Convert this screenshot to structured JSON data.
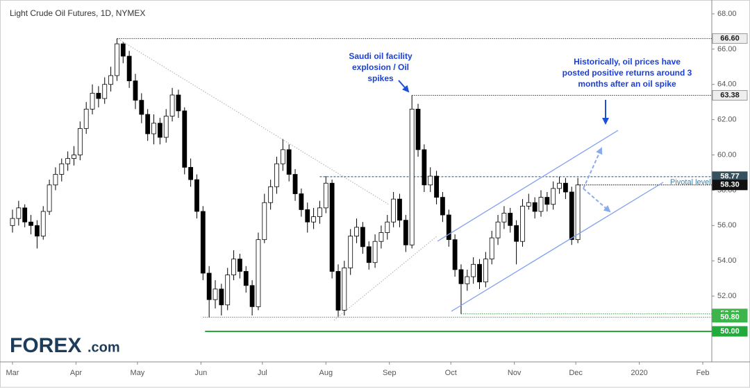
{
  "chart_data": {
    "type": "candlestick",
    "title": "Light Crude Oil Futures, 1D, NYMEX",
    "xlim": [
      -3.39,
      341.4
    ],
    "xticks": [
      {
        "value": 0,
        "label": "Mar"
      },
      {
        "value": 31,
        "label": "Apr"
      },
      {
        "value": 61,
        "label": "May"
      },
      {
        "value": 92,
        "label": "Jun"
      },
      {
        "value": 122,
        "label": "Jul"
      },
      {
        "value": 153,
        "label": "Aug"
      },
      {
        "value": 184,
        "label": "Sep"
      },
      {
        "value": 214,
        "label": "Oct"
      },
      {
        "value": 245,
        "label": "Nov"
      },
      {
        "value": 275,
        "label": "Dec"
      },
      {
        "value": 306,
        "label": "2020"
      },
      {
        "value": 337,
        "label": "Feb"
      }
    ],
    "ylim": [
      48.27,
      68.47
    ],
    "yticks": [
      {
        "value": 52,
        "label": "52.00"
      },
      {
        "value": 54,
        "label": "54.00"
      },
      {
        "value": 56,
        "label": "56.00"
      },
      {
        "value": 58,
        "label": "58.00"
      },
      {
        "value": 60,
        "label": "60.00"
      },
      {
        "value": 62,
        "label": "62.00"
      },
      {
        "value": 64,
        "label": "64.00"
      },
      {
        "value": 66,
        "label": "66.00"
      },
      {
        "value": 68,
        "label": "68.00"
      }
    ],
    "up_color": "#ffffff",
    "down_color": "#000000",
    "x": [
      0,
      3,
      6,
      9,
      12,
      15,
      18,
      21,
      24,
      27,
      30,
      33,
      36,
      39,
      42,
      45,
      48,
      51,
      54,
      57,
      60,
      63,
      66,
      69,
      72,
      75,
      78,
      81,
      84,
      87,
      90,
      93,
      96,
      99,
      102,
      105,
      108,
      111,
      114,
      117,
      120,
      123,
      126,
      129,
      132,
      135,
      138,
      141,
      144,
      147,
      150,
      153,
      156,
      159,
      162,
      165,
      168,
      171,
      174,
      177,
      180,
      183,
      186,
      189,
      192,
      195,
      198,
      201,
      204,
      207,
      210,
      213,
      216,
      219,
      222,
      225,
      228,
      231,
      234,
      237,
      240,
      243,
      246,
      249,
      252,
      255,
      258,
      261,
      264,
      267,
      270,
      273,
      276
    ],
    "ohlc": [
      [
        56.0,
        56.9,
        55.6,
        56.4
      ],
      [
        56.4,
        57.4,
        56.0,
        57.0
      ],
      [
        57.0,
        57.2,
        55.9,
        56.2
      ],
      [
        56.2,
        56.6,
        55.5,
        56.0
      ],
      [
        56.0,
        56.3,
        54.7,
        55.4
      ],
      [
        55.4,
        57.1,
        55.2,
        56.8
      ],
      [
        56.8,
        58.6,
        56.6,
        58.3
      ],
      [
        58.3,
        59.3,
        58.0,
        58.9
      ],
      [
        58.9,
        59.8,
        58.5,
        59.5
      ],
      [
        59.5,
        60.2,
        59.1,
        59.8
      ],
      [
        59.8,
        60.5,
        59.4,
        60.0
      ],
      [
        60.0,
        61.9,
        59.7,
        61.5
      ],
      [
        61.5,
        63.0,
        61.2,
        62.6
      ],
      [
        62.6,
        64.0,
        62.3,
        63.5
      ],
      [
        63.5,
        63.9,
        62.7,
        63.2
      ],
      [
        63.2,
        64.4,
        62.9,
        64.0
      ],
      [
        64.0,
        65.0,
        63.6,
        64.5
      ],
      [
        64.5,
        66.6,
        64.2,
        66.3
      ],
      [
        66.3,
        66.4,
        65.2,
        65.6
      ],
      [
        65.6,
        65.9,
        63.8,
        64.2
      ],
      [
        64.2,
        64.6,
        62.6,
        63.1
      ],
      [
        63.1,
        63.5,
        61.8,
        62.3
      ],
      [
        62.3,
        62.6,
        60.8,
        61.2
      ],
      [
        61.2,
        62.3,
        60.6,
        61.8
      ],
      [
        61.8,
        62.1,
        60.6,
        61.0
      ],
      [
        61.0,
        62.6,
        60.7,
        62.2
      ],
      [
        62.2,
        63.8,
        61.9,
        63.4
      ],
      [
        63.4,
        63.7,
        62.1,
        62.5
      ],
      [
        62.5,
        62.7,
        58.9,
        59.3
      ],
      [
        59.3,
        59.8,
        58.2,
        58.6
      ],
      [
        58.6,
        58.9,
        56.4,
        56.8
      ],
      [
        56.8,
        57.1,
        52.9,
        53.3
      ],
      [
        53.3,
        53.7,
        50.8,
        51.8
      ],
      [
        51.8,
        52.9,
        51.3,
        52.4
      ],
      [
        52.4,
        52.7,
        50.9,
        51.5
      ],
      [
        51.5,
        53.6,
        51.2,
        53.2
      ],
      [
        53.2,
        54.6,
        52.9,
        54.1
      ],
      [
        54.1,
        54.4,
        53.0,
        53.4
      ],
      [
        53.4,
        53.7,
        52.2,
        52.6
      ],
      [
        52.6,
        52.9,
        50.9,
        51.4
      ],
      [
        51.4,
        55.6,
        51.2,
        55.2
      ],
      [
        55.2,
        57.8,
        55.0,
        57.3
      ],
      [
        57.3,
        58.6,
        56.9,
        58.2
      ],
      [
        58.2,
        59.9,
        57.8,
        59.5
      ],
      [
        59.5,
        60.9,
        59.1,
        60.3
      ],
      [
        60.3,
        60.6,
        58.5,
        58.9
      ],
      [
        58.9,
        59.2,
        57.4,
        57.8
      ],
      [
        57.8,
        58.1,
        56.5,
        56.9
      ],
      [
        56.9,
        57.3,
        55.6,
        56.2
      ],
      [
        56.2,
        57.0,
        55.8,
        56.5
      ],
      [
        56.5,
        57.4,
        56.1,
        57.0
      ],
      [
        57.0,
        58.8,
        56.7,
        58.4
      ],
      [
        58.4,
        58.6,
        53.0,
        53.4
      ],
      [
        53.4,
        53.8,
        50.8,
        51.2
      ],
      [
        51.2,
        54.0,
        50.9,
        53.6
      ],
      [
        53.6,
        55.8,
        53.2,
        55.4
      ],
      [
        55.4,
        56.4,
        55.0,
        55.9
      ],
      [
        55.9,
        56.2,
        54.4,
        54.8
      ],
      [
        54.8,
        55.1,
        53.5,
        53.9
      ],
      [
        53.9,
        55.5,
        53.6,
        55.1
      ],
      [
        55.1,
        56.0,
        54.7,
        55.6
      ],
      [
        55.6,
        56.6,
        55.2,
        56.2
      ],
      [
        56.2,
        57.9,
        55.9,
        57.5
      ],
      [
        57.5,
        57.8,
        55.9,
        56.3
      ],
      [
        56.3,
        56.6,
        54.5,
        54.9
      ],
      [
        54.9,
        63.38,
        54.7,
        62.6
      ],
      [
        62.6,
        62.9,
        59.9,
        60.3
      ],
      [
        60.3,
        60.6,
        57.9,
        58.3
      ],
      [
        58.3,
        59.3,
        57.9,
        58.8
      ],
      [
        58.8,
        59.1,
        57.2,
        57.6
      ],
      [
        57.6,
        57.9,
        56.2,
        56.6
      ],
      [
        56.6,
        56.9,
        54.8,
        55.2
      ],
      [
        55.2,
        55.5,
        53.1,
        53.5
      ],
      [
        53.5,
        53.8,
        50.99,
        52.7
      ],
      [
        52.7,
        53.5,
        52.3,
        53.1
      ],
      [
        53.1,
        54.2,
        52.7,
        53.8
      ],
      [
        53.8,
        54.1,
        52.4,
        52.8
      ],
      [
        52.8,
        54.5,
        52.5,
        54.1
      ],
      [
        54.1,
        55.7,
        53.8,
        55.3
      ],
      [
        55.3,
        56.6,
        54.9,
        56.2
      ],
      [
        56.2,
        57.1,
        55.8,
        56.7
      ],
      [
        56.7,
        57.0,
        55.6,
        56.0
      ],
      [
        56.0,
        56.3,
        53.8,
        55.1
      ],
      [
        55.1,
        57.5,
        54.8,
        57.1
      ],
      [
        57.1,
        57.8,
        56.9,
        57.3
      ],
      [
        57.3,
        57.6,
        56.4,
        56.8
      ],
      [
        56.8,
        58.0,
        56.5,
        57.6
      ],
      [
        57.6,
        57.9,
        56.8,
        57.2
      ],
      [
        57.2,
        58.5,
        56.9,
        58.1
      ],
      [
        58.1,
        58.77,
        57.8,
        58.4
      ],
      [
        58.4,
        58.7,
        57.5,
        57.9
      ],
      [
        57.9,
        58.2,
        54.9,
        55.2
      ],
      [
        55.2,
        58.7,
        55.0,
        58.3
      ]
    ],
    "levels": [
      {
        "value": 66.6,
        "label": "66.60",
        "from": 51,
        "color": "#1f3a5a",
        "tag": "#eeeeee",
        "text": "#1a1a1a"
      },
      {
        "value": 63.38,
        "label": "63.38",
        "from": 195,
        "color": "#1f3a5a",
        "tag": "#eeeeee",
        "text": "#1a1a1a"
      },
      {
        "value": 58.77,
        "label": "58.77",
        "from": 150,
        "color": "#2e4a5a",
        "tag": "#37505e",
        "text": "#ffffff"
      },
      {
        "value": 58.3,
        "label": "58.30",
        "from": 276,
        "color": "#000000",
        "tag": "#111111",
        "text": "#ffffff"
      },
      {
        "value": 50.99,
        "label": "50.99",
        "from": 219,
        "color": "#2ea043",
        "tag": "#3cb54a",
        "text": "#ffffff"
      },
      {
        "value": 50.8,
        "label": "50.80",
        "from": 93,
        "color": "#2ea043",
        "tag": "#3cb54a",
        "text": "#ffffff"
      },
      {
        "value": 50.0,
        "label": "50.00",
        "from": 94,
        "color": "#22aa3a",
        "tag": "#22aa3a",
        "text": "#ffffff"
      }
    ],
    "annotations": [
      {
        "lines": [
          "Saudi oil facility",
          "explosion / Oil",
          "spikes"
        ]
      },
      {
        "lines": [
          "Historically, oil prices have",
          "posted positive returns around 3",
          "months after an oil spike"
        ]
      }
    ],
    "pivot_label": "Pivotal level",
    "logo": {
      "brand": "FOREX",
      "suffix": ".com"
    }
  }
}
